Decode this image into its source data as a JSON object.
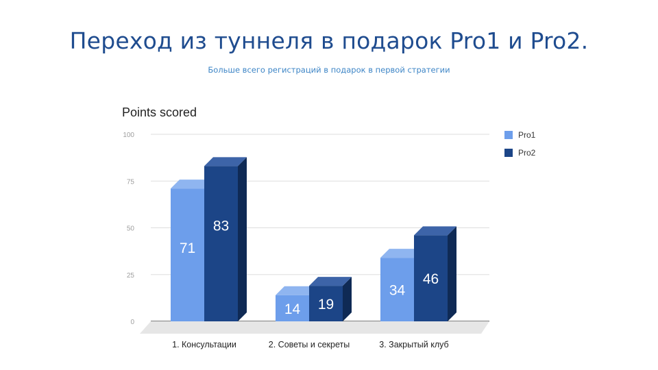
{
  "slide": {
    "title": "Переход из туннеля в подарок Pro1 и Pro2.",
    "subtitle": "Больше всего регистраций в подарок в первой стратегии"
  },
  "colors": {
    "pro1": "#6d9eeb",
    "pro2": "#1c4587",
    "title": "#1f4c8f",
    "subtitle": "#3d85c6"
  },
  "chart_data": {
    "type": "bar",
    "style": "3d",
    "title": "Points scored",
    "categories": [
      "1. Консультации",
      "2. Советы и секреты",
      "3. Закрытый клуб"
    ],
    "series": [
      {
        "name": "Pro1",
        "values": [
          71,
          14,
          34
        ]
      },
      {
        "name": "Pro2",
        "values": [
          83,
          19,
          46
        ]
      }
    ],
    "yticks": [
      "0",
      "25",
      "50",
      "75",
      "100"
    ],
    "ylim": [
      0,
      100
    ],
    "grid": true,
    "legend_position": "right",
    "data_labels": true
  }
}
